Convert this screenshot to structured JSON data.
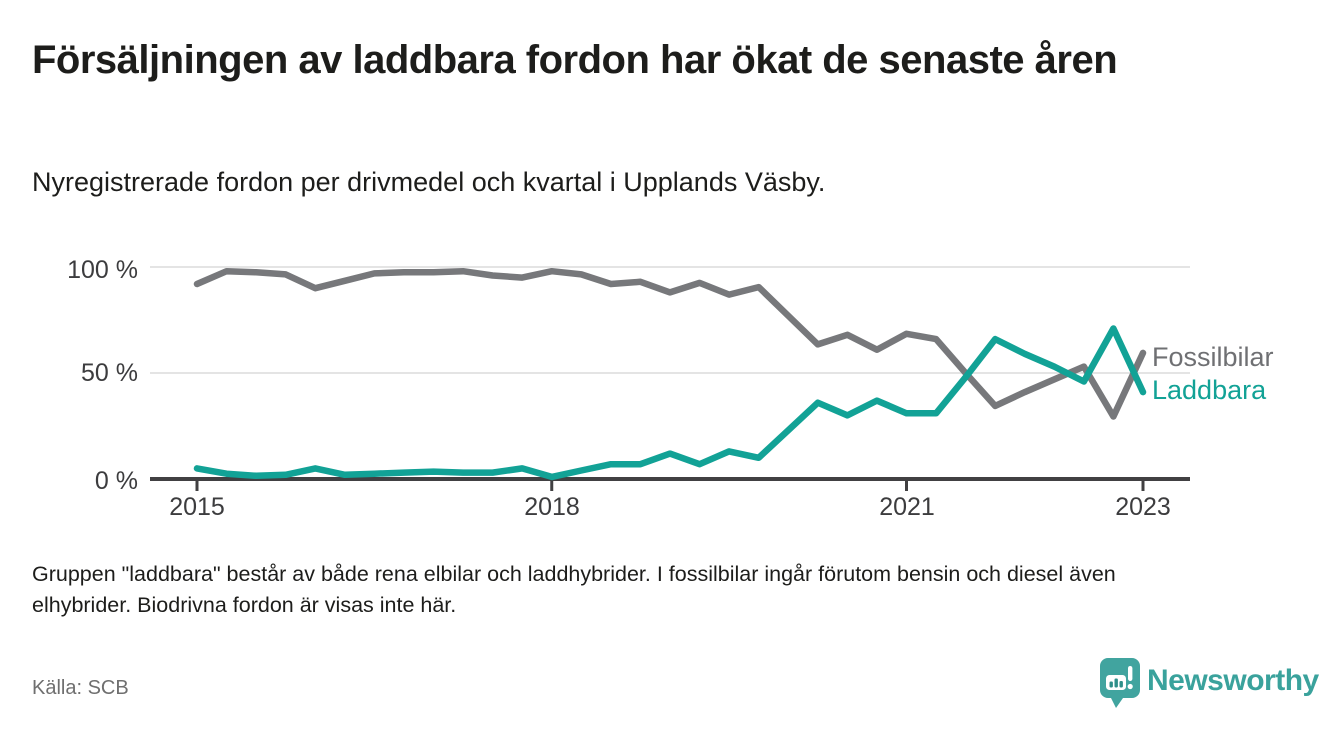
{
  "header": {
    "title": "Försäljningen av laddbara fordon har ökat de senaste åren",
    "subtitle": "Nyregistrerade fordon per drivmedel och kvartal i Upplands Väsby."
  },
  "chart_data": {
    "type": "line",
    "unit": "% of newly registered vehicles per quarter",
    "x_period": "Quarterly data from 2015 Q1 to 2023 Q1 (33 points)",
    "ylim": [
      0,
      100
    ],
    "grid": "horizontal",
    "legend_position": "right of line ends",
    "yticks": [
      {
        "label": "100 %",
        "value": 100
      },
      {
        "label": "50 %",
        "value": 50
      },
      {
        "label": "0 %",
        "value": 0
      }
    ],
    "xticks": [
      {
        "label": "2015",
        "index": 0
      },
      {
        "label": "2018",
        "index": 12
      },
      {
        "label": "2021",
        "index": 24
      },
      {
        "label": "2023",
        "index": 32
      }
    ],
    "series": [
      {
        "name": "Fossilbilar",
        "color": "#77787B",
        "values": [
          92,
          98,
          97.5,
          96.5,
          90,
          93.5,
          97,
          97.5,
          97.5,
          98,
          96,
          95,
          98,
          96.5,
          92,
          93,
          88,
          92.5,
          87,
          90.5,
          77,
          63.5,
          68,
          61,
          68.5,
          66,
          50,
          34.5,
          41,
          47,
          53,
          29.5,
          59.5
        ]
      },
      {
        "name": "Laddbara",
        "color": "#12A296",
        "values": [
          5,
          2.5,
          1.5,
          2,
          5,
          2,
          2.5,
          3,
          3.5,
          3,
          3,
          5,
          1,
          4,
          7,
          7,
          12,
          7,
          13,
          10,
          23,
          36,
          30,
          37,
          31,
          31,
          48,
          66,
          59,
          53,
          46,
          71,
          41
        ]
      }
    ]
  },
  "notes": {
    "line1": "Gruppen \"laddbara\" består av både rena elbilar och laddhybrider. I fossilbilar ingår förutom bensin och diesel även",
    "line2": "elhybrider. Biodrivna fordon är visas inte här."
  },
  "footer": {
    "source": "Källa: SCB",
    "brand": "Newsworthy"
  },
  "colors": {
    "fossil_line": "#77787B",
    "laddbara_line": "#12A296",
    "axis": "#414042",
    "gridline": "#E4E4E4",
    "brand_teal": "#3AA29C"
  }
}
